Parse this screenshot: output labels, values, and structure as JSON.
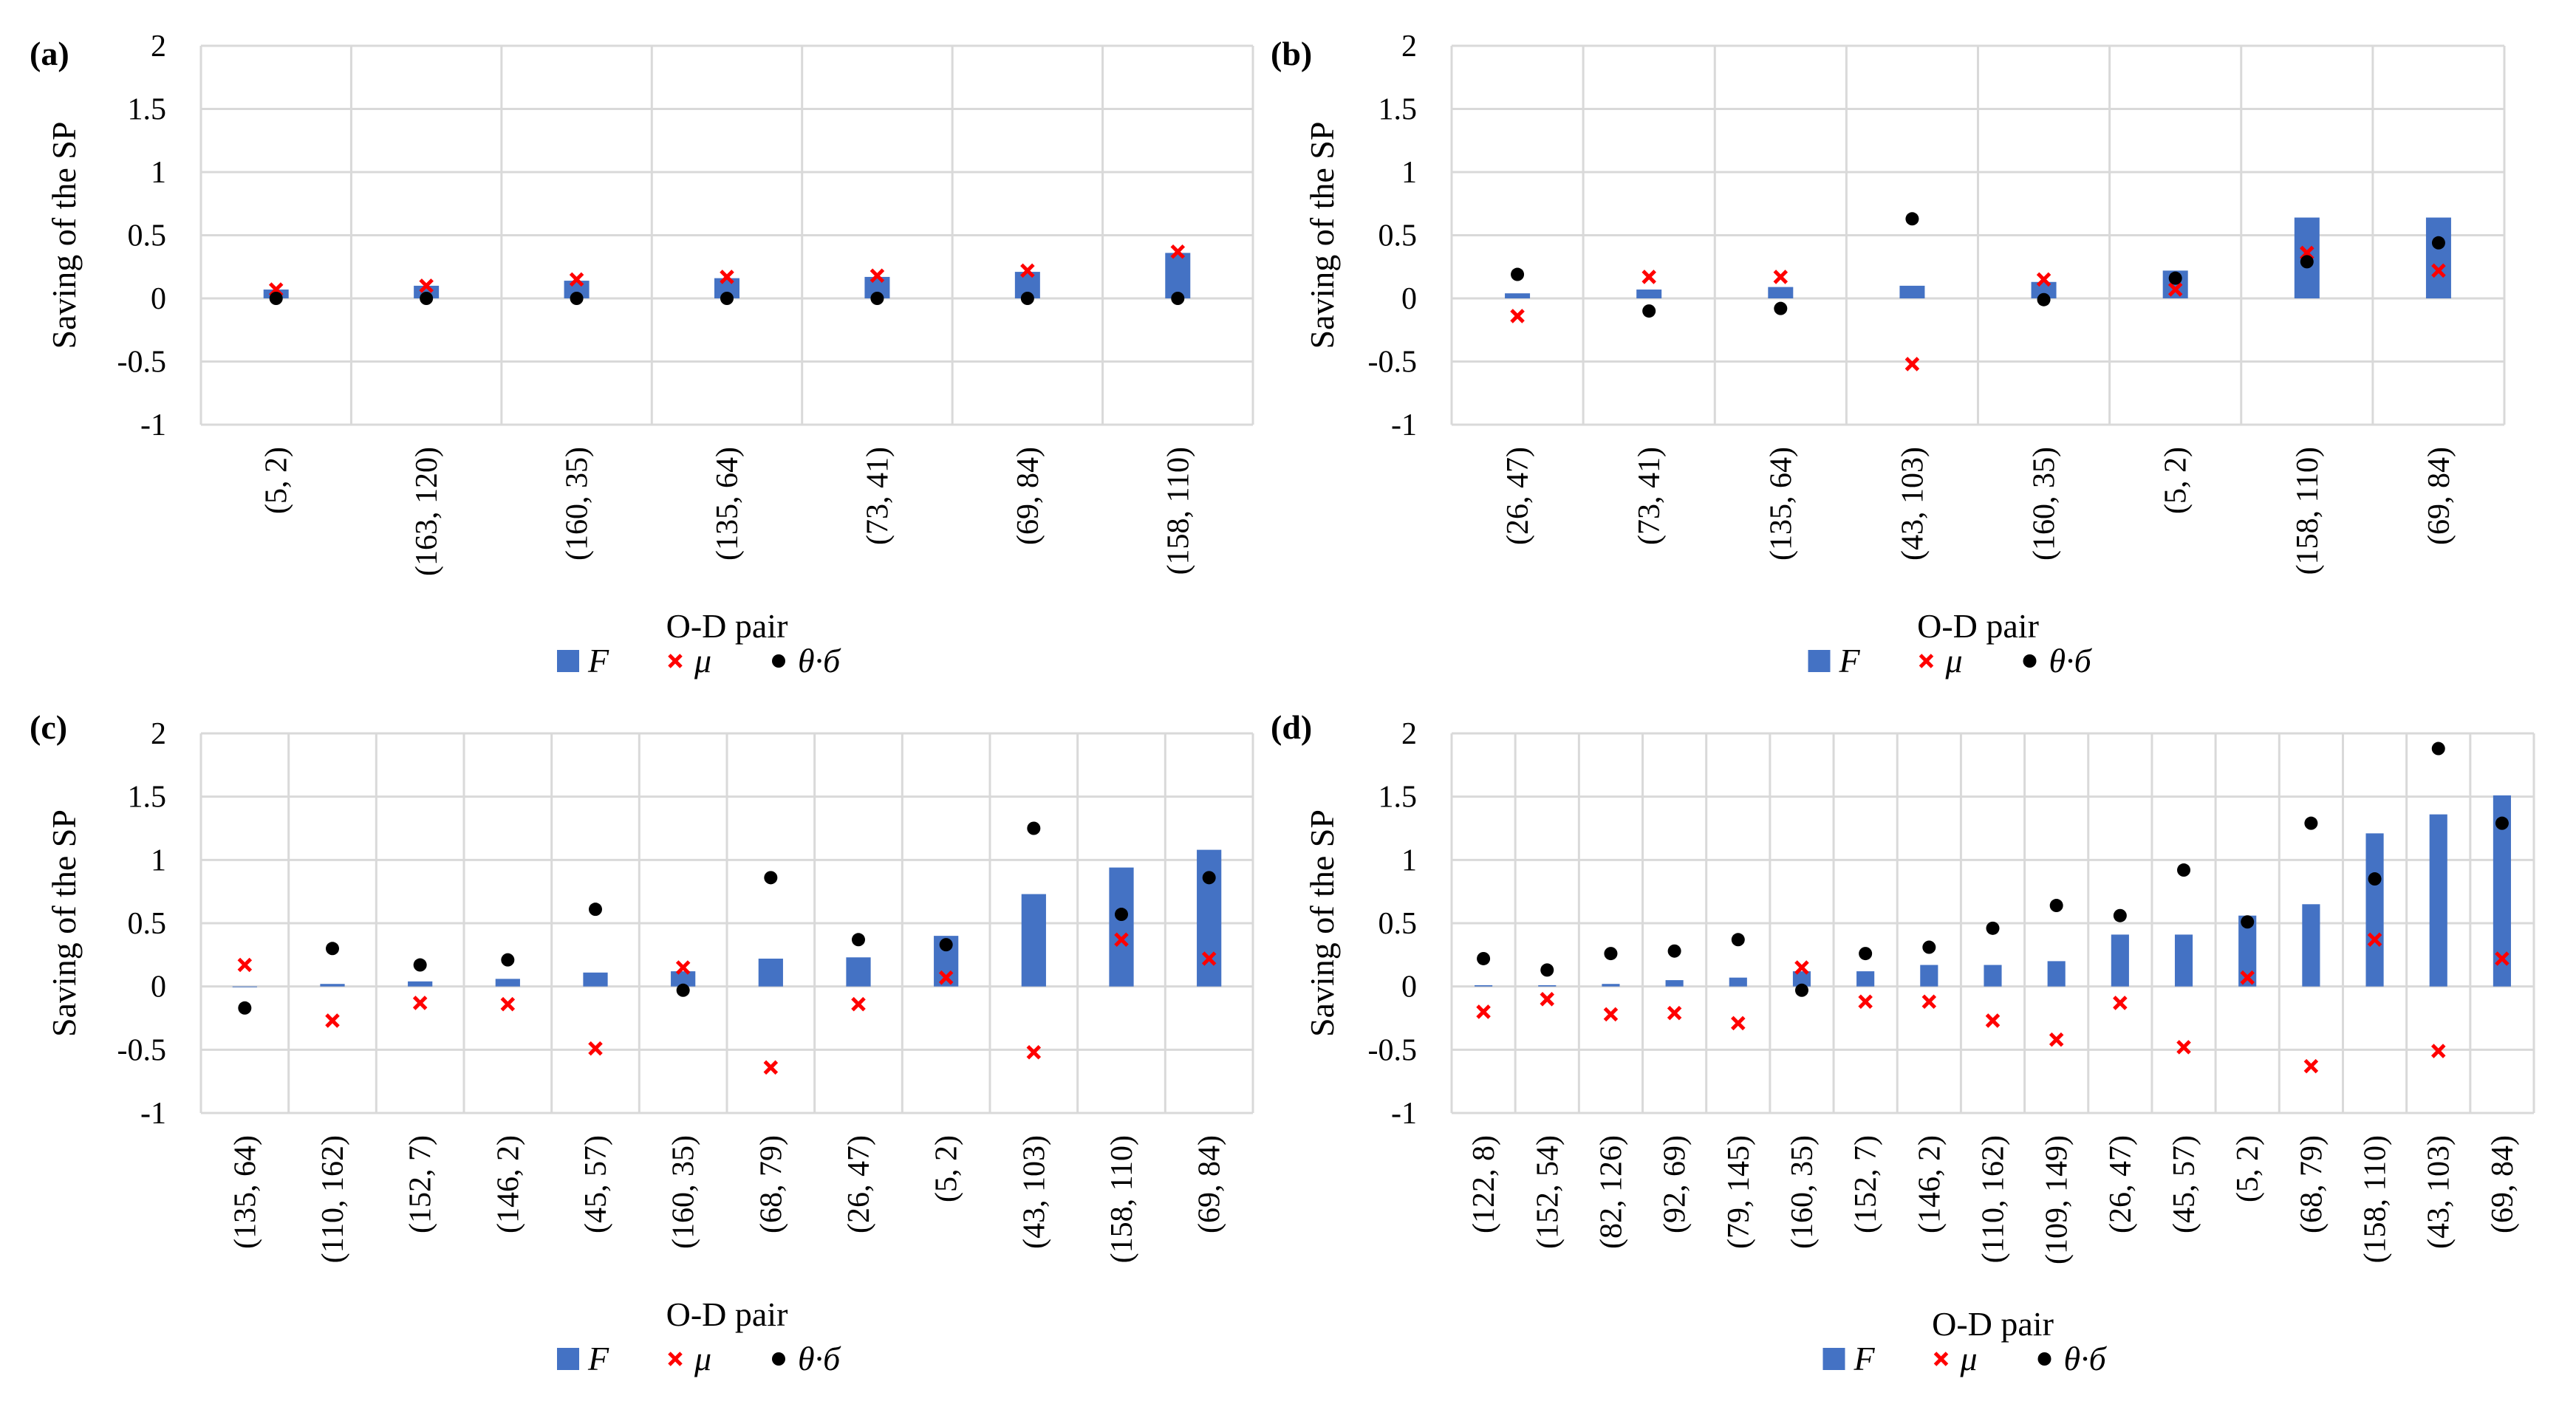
{
  "chart_data": [
    {
      "panel": "(a)",
      "type": "bar",
      "ylabel": "Saving of the SP",
      "xlabel": "O-D pair",
      "ylim": [
        -1,
        2
      ],
      "yticks": [
        "2",
        "1.5",
        "1",
        "0.5",
        "0",
        "-0.5",
        "-1"
      ],
      "categories": [
        "(5, 2)",
        "(163, 120)",
        "(160, 35)",
        "(135, 64)",
        "(73, 41)",
        "(69, 84)",
        "(158, 110)"
      ],
      "series": [
        {
          "name": "F",
          "kind": "bar",
          "color": "#4472C4",
          "values": [
            0.07,
            0.1,
            0.14,
            0.16,
            0.17,
            0.21,
            0.36
          ]
        },
        {
          "name": "μ",
          "kind": "cross",
          "color": "#FF0000",
          "values": [
            0.07,
            0.1,
            0.15,
            0.17,
            0.18,
            0.22,
            0.37
          ]
        },
        {
          "name": "θ·б",
          "kind": "dot",
          "color": "#000000",
          "values": [
            0.0,
            0.0,
            0.0,
            0.0,
            0.0,
            0.0,
            0.0
          ]
        }
      ]
    },
    {
      "panel": "(b)",
      "type": "bar",
      "ylabel": "Saving of the SP",
      "xlabel": "O-D pair",
      "ylim": [
        -1,
        2
      ],
      "yticks": [
        "2",
        "1.5",
        "1",
        "0.5",
        "0",
        "-0.5",
        "-1"
      ],
      "categories": [
        "(26, 47)",
        "(73, 41)",
        "(135, 64)",
        "(43, 103)",
        "(160, 35)",
        "(5, 2)",
        "(158, 110)",
        "(69, 84)"
      ],
      "series": [
        {
          "name": "F",
          "kind": "bar",
          "color": "#4472C4",
          "values": [
            0.04,
            0.07,
            0.09,
            0.1,
            0.13,
            0.22,
            0.64,
            0.64
          ]
        },
        {
          "name": "μ",
          "kind": "cross",
          "color": "#FF0000",
          "values": [
            -0.14,
            0.17,
            0.17,
            -0.52,
            0.15,
            0.07,
            0.36,
            0.22
          ]
        },
        {
          "name": "θ·б",
          "kind": "dot",
          "color": "#000000",
          "values": [
            0.19,
            -0.1,
            -0.08,
            0.63,
            -0.01,
            0.16,
            0.29,
            0.44
          ]
        }
      ]
    },
    {
      "panel": "(c)",
      "type": "bar",
      "ylabel": "Saving of the SP",
      "xlabel": "O-D pair",
      "ylim": [
        -1,
        2
      ],
      "yticks": [
        "2",
        "1.5",
        "1",
        "0.5",
        "0",
        "-0.5",
        "-1"
      ],
      "categories": [
        "(135, 64)",
        "(110, 162)",
        "(152, 7)",
        "(146, 2)",
        "(45, 57)",
        "(160, 35)",
        "(68, 79)",
        "(26, 47)",
        "(5, 2)",
        "(43, 103)",
        "(158, 110)",
        "(69, 84)"
      ],
      "series": [
        {
          "name": "F",
          "kind": "bar",
          "color": "#4472C4",
          "values": [
            0.0,
            0.02,
            0.04,
            0.06,
            0.11,
            0.12,
            0.22,
            0.23,
            0.4,
            0.73,
            0.94,
            1.08
          ]
        },
        {
          "name": "μ",
          "kind": "cross",
          "color": "#FF0000",
          "values": [
            0.17,
            -0.27,
            -0.13,
            -0.14,
            -0.49,
            0.15,
            -0.64,
            -0.14,
            0.07,
            -0.52,
            0.37,
            0.22
          ]
        },
        {
          "name": "θ·б",
          "kind": "dot",
          "color": "#000000",
          "values": [
            -0.17,
            0.3,
            0.17,
            0.21,
            0.61,
            -0.03,
            0.86,
            0.37,
            0.33,
            1.25,
            0.57,
            0.86
          ]
        }
      ]
    },
    {
      "panel": "(d)",
      "type": "bar",
      "ylabel": "Saving of the SP",
      "xlabel": "O-D pair",
      "ylim": [
        -1,
        2
      ],
      "yticks": [
        "2",
        "1.5",
        "1",
        "0.5",
        "0",
        "-0.5",
        "-1"
      ],
      "categories": [
        "(122, 8)",
        "(152, 54)",
        "(82, 126)",
        "(92, 69)",
        "(79, 145)",
        "(160, 35)",
        "(152, 7)",
        "(146, 2)",
        "(110, 162)",
        "(109, 149)",
        "(26, 47)",
        "(45, 57)",
        "(5, 2)",
        "(68, 79)",
        "(158, 110)",
        "(43, 103)",
        "(69, 84)"
      ],
      "series": [
        {
          "name": "F",
          "kind": "bar",
          "color": "#4472C4",
          "values": [
            0.01,
            0.01,
            0.02,
            0.05,
            0.07,
            0.12,
            0.12,
            0.17,
            0.17,
            0.2,
            0.41,
            0.41,
            0.56,
            0.65,
            1.21,
            1.36,
            1.51
          ]
        },
        {
          "name": "μ",
          "kind": "cross",
          "color": "#FF0000",
          "values": [
            -0.2,
            -0.1,
            -0.22,
            -0.21,
            -0.29,
            0.15,
            -0.12,
            -0.12,
            -0.27,
            -0.42,
            -0.13,
            -0.48,
            0.07,
            -0.63,
            0.37,
            -0.51,
            0.22
          ]
        },
        {
          "name": "θ·б",
          "kind": "dot",
          "color": "#000000",
          "values": [
            0.22,
            0.13,
            0.26,
            0.28,
            0.37,
            -0.03,
            0.26,
            0.31,
            0.46,
            0.64,
            0.56,
            0.92,
            0.51,
            1.29,
            0.85,
            1.88,
            1.29
          ]
        }
      ]
    }
  ]
}
